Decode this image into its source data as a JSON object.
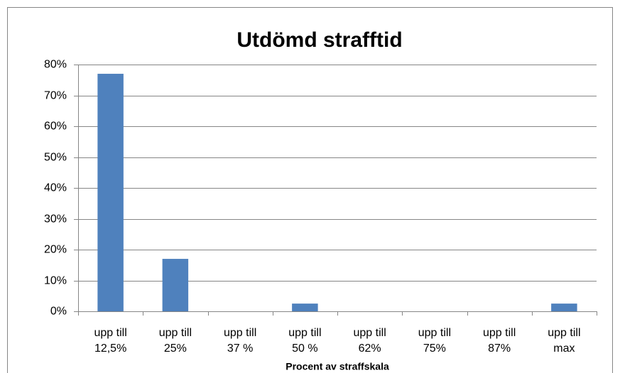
{
  "chart_data": {
    "type": "bar",
    "title": "Utdömd strafftid",
    "x_label": "Procent av straffskala",
    "categories": [
      "upp till\n12,5%",
      "upp till\n25%",
      "upp till\n37 %",
      "upp till\n50 %",
      "upp till\n62%",
      "upp till\n75%",
      "upp till\n87%",
      "upp till\nmax"
    ],
    "values": [
      77,
      17,
      0,
      2.5,
      0,
      0,
      0,
      2.5
    ],
    "color": "#4f81bd",
    "ylim": [
      0,
      80
    ],
    "yticks": [
      {
        "value": 0,
        "label": "0%"
      },
      {
        "value": 10,
        "label": "10%"
      },
      {
        "value": 20,
        "label": "20%"
      },
      {
        "value": 30,
        "label": "30%"
      },
      {
        "value": 40,
        "label": "40%"
      },
      {
        "value": 50,
        "label": "50%"
      },
      {
        "value": 60,
        "label": "60%"
      },
      {
        "value": 70,
        "label": "70%"
      },
      {
        "value": 80,
        "label": "80%"
      }
    ],
    "grid": true
  }
}
